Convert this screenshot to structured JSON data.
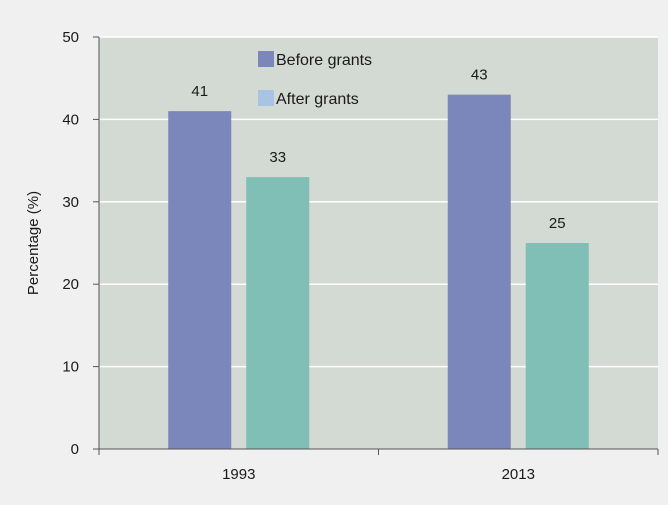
{
  "chart_data": {
    "type": "bar",
    "categories": [
      "1993",
      "2013"
    ],
    "series": [
      {
        "name": "Before grants",
        "values": [
          41,
          43
        ],
        "color": "#7b86ba"
      },
      {
        "name": "After grants",
        "values": [
          33,
          25
        ],
        "color": "#80bfb5"
      }
    ],
    "legend_swatch_colors": [
      "#7b86ba",
      "#a7c4e4"
    ],
    "ylabel": "Percentage (%)",
    "xlabel": "",
    "ylim": [
      0,
      50
    ],
    "yticks": [
      0,
      10,
      20,
      30,
      40,
      50
    ],
    "grid": true,
    "legend_position": "top-center",
    "plot_background": "#d3d9d3",
    "page_background": "#f0f0f0",
    "gridline_color": "#ffffff"
  }
}
